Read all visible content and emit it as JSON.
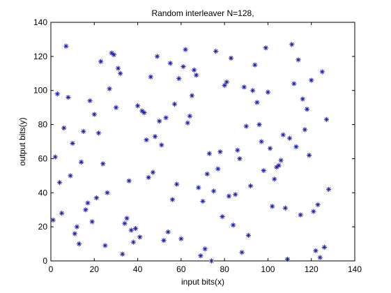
{
  "chart_data": {
    "type": "scatter",
    "title": "Random interleaver N=128,",
    "xlabel": "input bits(x)",
    "ylabel": "output bits(y)",
    "xlim": [
      0,
      140
    ],
    "ylim": [
      0,
      140
    ],
    "xticks": [
      0,
      20,
      40,
      60,
      80,
      100,
      120,
      140
    ],
    "yticks": [
      0,
      20,
      40,
      60,
      80,
      100,
      120,
      140
    ],
    "grid": false,
    "legend": "none",
    "marker": "asterisk",
    "color": "#1f1fb4",
    "series": [
      {
        "points": [
          [
            1,
            24
          ],
          [
            2,
            61
          ],
          [
            3,
            98
          ],
          [
            4,
            46
          ],
          [
            5,
            28
          ],
          [
            6,
            78
          ],
          [
            7,
            126
          ],
          [
            8,
            96
          ],
          [
            9,
            50
          ],
          [
            10,
            69
          ],
          [
            11,
            16
          ],
          [
            12,
            20
          ],
          [
            13,
            10
          ],
          [
            14,
            58
          ],
          [
            15,
            76
          ],
          [
            16,
            30
          ],
          [
            17,
            34
          ],
          [
            18,
            94
          ],
          [
            19,
            23
          ],
          [
            20,
            86
          ],
          [
            21,
            37
          ],
          [
            22,
            75
          ],
          [
            23,
            117
          ],
          [
            24,
            57
          ],
          [
            25,
            9
          ],
          [
            26,
            40
          ],
          [
            27,
            101
          ],
          [
            28,
            122
          ],
          [
            29,
            121
          ],
          [
            30,
            90
          ],
          [
            31,
            113
          ],
          [
            32,
            110
          ],
          [
            33,
            4
          ],
          [
            34,
            22
          ],
          [
            35,
            25
          ],
          [
            36,
            47
          ],
          [
            37,
            18
          ],
          [
            38,
            11
          ],
          [
            39,
            19
          ],
          [
            40,
            91
          ],
          [
            41,
            14
          ],
          [
            42,
            88
          ],
          [
            43,
            87
          ],
          [
            44,
            71
          ],
          [
            45,
            49
          ],
          [
            46,
            108
          ],
          [
            47,
            52
          ],
          [
            48,
            73
          ],
          [
            49,
            120
          ],
          [
            50,
            82
          ],
          [
            51,
            68
          ],
          [
            52,
            12
          ],
          [
            53,
            84
          ],
          [
            54,
            17
          ],
          [
            55,
            116
          ],
          [
            56,
            36
          ],
          [
            57,
            92
          ],
          [
            58,
            45
          ],
          [
            59,
            107
          ],
          [
            60,
            13
          ],
          [
            61,
            114
          ],
          [
            62,
            124
          ],
          [
            63,
            81
          ],
          [
            64,
            85
          ],
          [
            65,
            97
          ],
          [
            66,
            112
          ],
          [
            67,
            109
          ],
          [
            68,
            43
          ],
          [
            69,
            3
          ],
          [
            70,
            35
          ],
          [
            71,
            7
          ],
          [
            72,
            51
          ],
          [
            73,
            63
          ],
          [
            74,
            0
          ],
          [
            75,
            41
          ],
          [
            76,
            123
          ],
          [
            77,
            54
          ],
          [
            78,
            64
          ],
          [
            79,
            26
          ],
          [
            80,
            103
          ],
          [
            81,
            105
          ],
          [
            82,
            38
          ],
          [
            83,
            119
          ],
          [
            84,
            21
          ],
          [
            85,
            39
          ],
          [
            86,
            65
          ],
          [
            87,
            60
          ],
          [
            88,
            5
          ],
          [
            89,
            102
          ],
          [
            90,
            79
          ],
          [
            91,
            15
          ],
          [
            92,
            44
          ],
          [
            93,
            100
          ],
          [
            94,
            115
          ],
          [
            95,
            93
          ],
          [
            96,
            80
          ],
          [
            97,
            70
          ],
          [
            98,
            53
          ],
          [
            99,
            125
          ],
          [
            100,
            99
          ],
          [
            101,
            66
          ],
          [
            102,
            32
          ],
          [
            103,
            48
          ],
          [
            104,
            55
          ],
          [
            105,
            56
          ],
          [
            106,
            59
          ],
          [
            107,
            74
          ],
          [
            108,
            31
          ],
          [
            109,
            1
          ],
          [
            110,
            72
          ],
          [
            111,
            127
          ],
          [
            112,
            104
          ],
          [
            113,
            67
          ],
          [
            114,
            118
          ],
          [
            115,
            27
          ],
          [
            116,
            95
          ],
          [
            117,
            77
          ],
          [
            118,
            89
          ],
          [
            119,
            62
          ],
          [
            120,
            106
          ],
          [
            121,
            29
          ],
          [
            122,
            6
          ],
          [
            123,
            33
          ],
          [
            124,
            2
          ],
          [
            125,
            111
          ],
          [
            126,
            8
          ],
          [
            127,
            83
          ],
          [
            128,
            42
          ]
        ]
      }
    ]
  }
}
